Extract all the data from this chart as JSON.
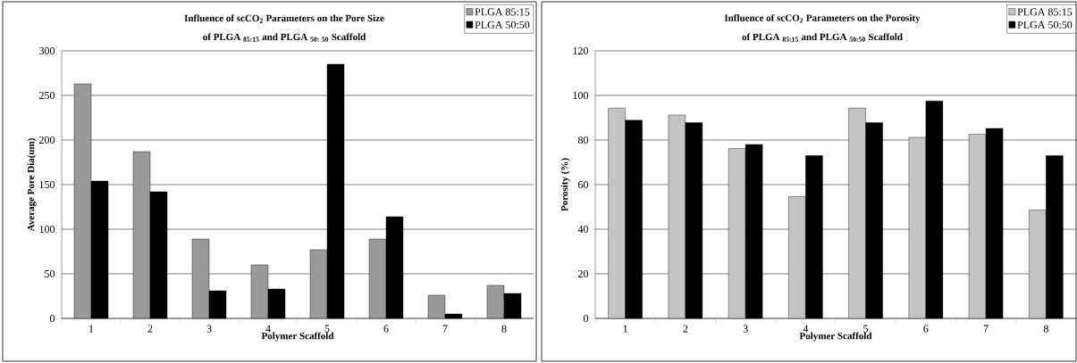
{
  "chart_data": [
    {
      "type": "bar",
      "title": "Influence of scCO$_{2}$ Parameters on the Pore Size",
      "subtitle": "of PLGA $_{85:15}$ and PLGA $_{50: 50}$ Scaffold",
      "xlabel": "Polymer Scaffold",
      "ylabel": "Average Pore Dia(um)",
      "categories": [
        "1",
        "2",
        "3",
        "4",
        "5",
        "6",
        "7",
        "8"
      ],
      "series": [
        {
          "name": "PLGA 85:15",
          "color": "#9a9a9a",
          "values": [
            263,
            187,
            89,
            60,
            77,
            89,
            26,
            37
          ]
        },
        {
          "name": "PLGA 50:50",
          "color": "#000000",
          "values": [
            154,
            142,
            31,
            33,
            285,
            114,
            5,
            28
          ]
        }
      ],
      "ylim": [
        0,
        300
      ],
      "yticks": [
        0,
        50,
        100,
        150,
        200,
        250,
        300
      ],
      "grid": "y",
      "legend": "top right"
    },
    {
      "type": "bar",
      "title": "Influence of scCO$_{2}$ Parameters on the Porosity",
      "subtitle": "of PLGA $_{85:15}$ and PLGA $_{50:50}$ Scaffold",
      "xlabel": "Polymer Scaffold",
      "ylabel": "Porosity (%)",
      "categories": [
        "1",
        "2",
        "3",
        "4",
        "5",
        "6",
        "7",
        "8"
      ],
      "series": [
        {
          "name": "PLGA 85:15",
          "color": "#c4c4c4",
          "values": [
            94.3,
            91.2,
            76.2,
            54.6,
            94.3,
            81.2,
            82.6,
            48.6
          ]
        },
        {
          "name": "PLGA 50:50",
          "color": "#000000",
          "values": [
            88.9,
            87.8,
            78,
            73,
            87.8,
            97.5,
            85.2,
            73
          ]
        }
      ],
      "ylim": [
        0,
        120
      ],
      "yticks": [
        0,
        20,
        40,
        60,
        80,
        100,
        120
      ],
      "grid": "y",
      "legend": "top right"
    }
  ]
}
